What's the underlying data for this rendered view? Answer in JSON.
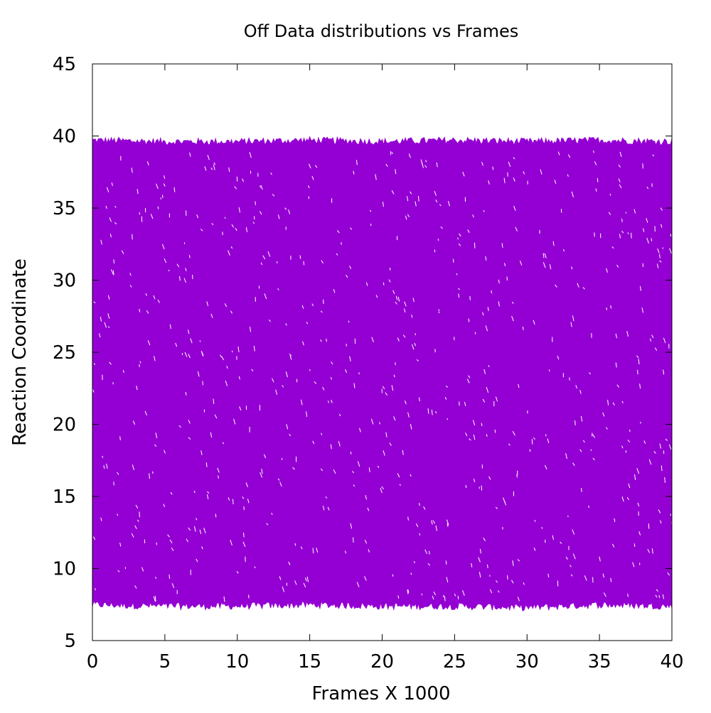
{
  "chart_data": {
    "type": "area",
    "title": "Off Data distributions vs Frames",
    "xlabel": "Frames X 1000",
    "ylabel": "Reaction Coordinate",
    "xlim": [
      0,
      40
    ],
    "ylim": [
      5,
      45
    ],
    "x_ticks": [
      "0",
      "5",
      "10",
      "15",
      "20",
      "25",
      "30",
      "35",
      "40"
    ],
    "y_ticks": [
      "5",
      "10",
      "15",
      "20",
      "25",
      "30",
      "35",
      "40",
      "45"
    ],
    "grid": false,
    "legend": "none",
    "series": [
      {
        "color": "#9400d3",
        "x": [
          0,
          5,
          10,
          15,
          20,
          25,
          30,
          35,
          40
        ],
        "upper": [
          39.7,
          39.6,
          39.6,
          39.7,
          39.6,
          39.7,
          39.6,
          39.7,
          39.6
        ],
        "lower": [
          7.5,
          7.4,
          7.4,
          7.5,
          7.4,
          7.4,
          7.3,
          7.5,
          7.4
        ]
      }
    ]
  }
}
